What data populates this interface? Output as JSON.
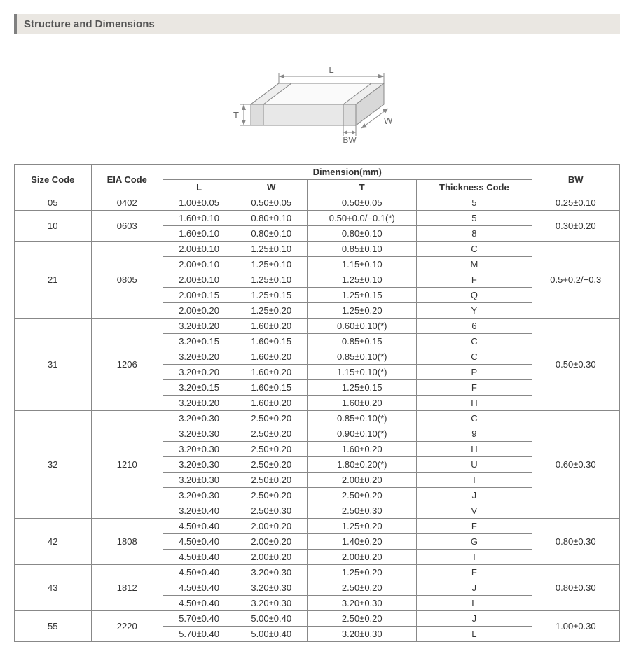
{
  "section_title": "Structure and Dimensions",
  "diagram": {
    "labels": {
      "L": "L",
      "W": "W",
      "T": "T",
      "BW": "BW"
    },
    "stroke_color": "#888888",
    "fill_top": "#fafafa",
    "fill_side": "#e8e8e8",
    "fill_end": "#d8d8d8",
    "label_color": "#666666"
  },
  "table": {
    "header_group": "Dimension(mm)",
    "columns": {
      "size": "Size Code",
      "eia": "EIA Code",
      "L": "L",
      "W": "W",
      "T": "T",
      "thick": "Thickness Code",
      "BW": "BW"
    },
    "groups": [
      {
        "size": "05",
        "eia": "0402",
        "bw": "0.25±0.10",
        "rows": [
          {
            "L": "1.00±0.05",
            "W": "0.50±0.05",
            "T": "0.50±0.05",
            "TC": "5"
          }
        ]
      },
      {
        "size": "10",
        "eia": "0603",
        "bw": "0.30±0.20",
        "rows": [
          {
            "L": "1.60±0.10",
            "W": "0.80±0.10",
            "T": "0.50+0.0/−0.1(*)",
            "TC": "5"
          },
          {
            "L": "1.60±0.10",
            "W": "0.80±0.10",
            "T": "0.80±0.10",
            "TC": "8"
          }
        ]
      },
      {
        "size": "21",
        "eia": "0805",
        "bw": "0.5+0.2/−0.3",
        "rows": [
          {
            "L": "2.00±0.10",
            "W": "1.25±0.10",
            "T": "0.85±0.10",
            "TC": "C"
          },
          {
            "L": "2.00±0.10",
            "W": "1.25±0.10",
            "T": "1.15±0.10",
            "TC": "M"
          },
          {
            "L": "2.00±0.10",
            "W": "1.25±0.10",
            "T": "1.25±0.10",
            "TC": "F"
          },
          {
            "L": "2.00±0.15",
            "W": "1.25±0.15",
            "T": "1.25±0.15",
            "TC": "Q"
          },
          {
            "L": "2.00±0.20",
            "W": "1.25±0.20",
            "T": "1.25±0.20",
            "TC": "Y"
          }
        ]
      },
      {
        "size": "31",
        "eia": "1206",
        "bw": "0.50±0.30",
        "rows": [
          {
            "L": "3.20±0.20",
            "W": "1.60±0.20",
            "T": "0.60±0.10(*)",
            "TC": "6"
          },
          {
            "L": "3.20±0.15",
            "W": "1.60±0.15",
            "T": "0.85±0.15",
            "TC": "C"
          },
          {
            "L": "3.20±0.20",
            "W": "1.60±0.20",
            "T": "0.85±0.10(*)",
            "TC": "C"
          },
          {
            "L": "3.20±0.20",
            "W": "1.60±0.20",
            "T": "1.15±0.10(*)",
            "TC": "P"
          },
          {
            "L": "3.20±0.15",
            "W": "1.60±0.15",
            "T": "1.25±0.15",
            "TC": "F"
          },
          {
            "L": "3.20±0.20",
            "W": "1.60±0.20",
            "T": "1.60±0.20",
            "TC": "H"
          }
        ]
      },
      {
        "size": "32",
        "eia": "1210",
        "bw": "0.60±0.30",
        "rows": [
          {
            "L": "3.20±0.30",
            "W": "2.50±0.20",
            "T": "0.85±0.10(*)",
            "TC": "C"
          },
          {
            "L": "3.20±0.30",
            "W": "2.50±0.20",
            "T": "0.90±0.10(*)",
            "TC": "9"
          },
          {
            "L": "3.20±0.30",
            "W": "2.50±0.20",
            "T": "1.60±0.20",
            "TC": "H"
          },
          {
            "L": "3.20±0.30",
            "W": "2.50±0.20",
            "T": "1.80±0.20(*)",
            "TC": "U"
          },
          {
            "L": "3.20±0.30",
            "W": "2.50±0.20",
            "T": "2.00±0.20",
            "TC": "I"
          },
          {
            "L": "3.20±0.30",
            "W": "2.50±0.20",
            "T": "2.50±0.20",
            "TC": "J"
          },
          {
            "L": "3.20±0.40",
            "W": "2.50±0.30",
            "T": "2.50±0.30",
            "TC": "V"
          }
        ]
      },
      {
        "size": "42",
        "eia": "1808",
        "bw": "0.80±0.30",
        "rows": [
          {
            "L": "4.50±0.40",
            "W": "2.00±0.20",
            "T": "1.25±0.20",
            "TC": "F"
          },
          {
            "L": "4.50±0.40",
            "W": "2.00±0.20",
            "T": "1.40±0.20",
            "TC": "G"
          },
          {
            "L": "4.50±0.40",
            "W": "2.00±0.20",
            "T": "2.00±0.20",
            "TC": "I"
          }
        ]
      },
      {
        "size": "43",
        "eia": "1812",
        "bw": "0.80±0.30",
        "rows": [
          {
            "L": "4.50±0.40",
            "W": "3.20±0.30",
            "T": "1.25±0.20",
            "TC": "F"
          },
          {
            "L": "4.50±0.40",
            "W": "3.20±0.30",
            "T": "2.50±0.20",
            "TC": "J"
          },
          {
            "L": "4.50±0.40",
            "W": "3.20±0.30",
            "T": "3.20±0.30",
            "TC": "L"
          }
        ]
      },
      {
        "size": "55",
        "eia": "2220",
        "bw": "1.00±0.30",
        "rows": [
          {
            "L": "5.70±0.40",
            "W": "5.00±0.40",
            "T": "2.50±0.20",
            "TC": "J"
          },
          {
            "L": "5.70±0.40",
            "W": "5.00±0.40",
            "T": "3.20±0.30",
            "TC": "L"
          }
        ]
      }
    ]
  }
}
